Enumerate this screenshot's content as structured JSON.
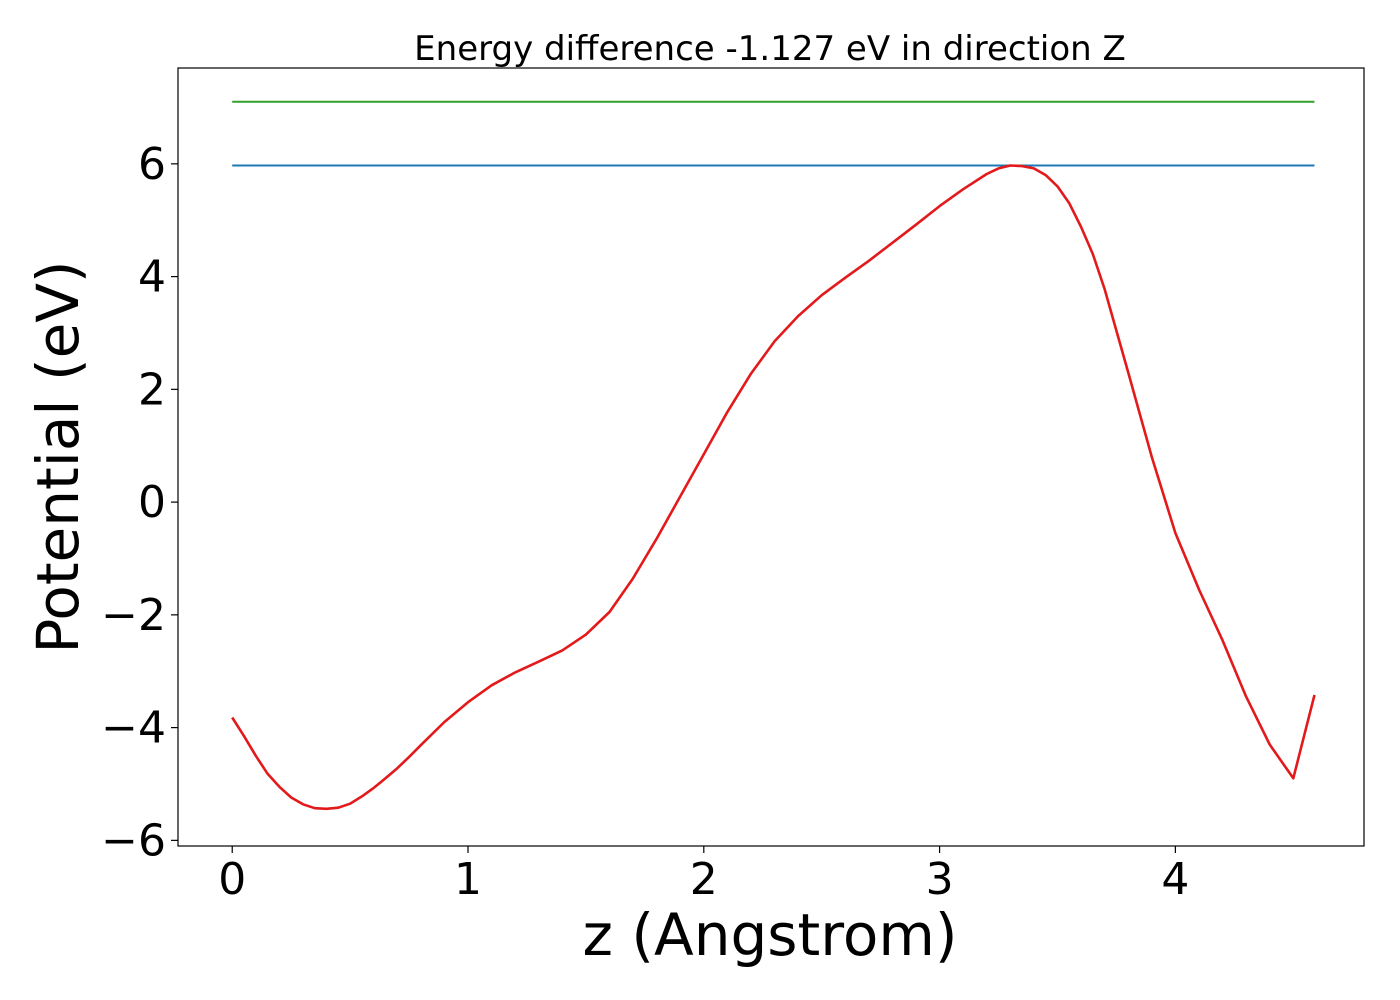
{
  "chart_data": {
    "type": "line",
    "title": "Energy difference -1.127 eV in direction Z",
    "xlabel": "z (Angstrom)",
    "ylabel": "Potential (eV)",
    "xlim": [
      -0.23,
      4.8
    ],
    "ylim": [
      -6.1,
      7.7
    ],
    "xticks": [
      0,
      1,
      2,
      3,
      4
    ],
    "yticks": [
      -6,
      -4,
      -2,
      0,
      2,
      4,
      6
    ],
    "xtick_labels": [
      "0",
      "1",
      "2",
      "3",
      "4"
    ],
    "ytick_labels": [
      "−6",
      "−4",
      "−2",
      "0",
      "2",
      "4",
      "6"
    ],
    "grid": false,
    "legend": "none",
    "series": [
      {
        "color": "#1f78b4",
        "style": "hline",
        "x": [
          0,
          4.59
        ],
        "y": [
          5.97,
          5.97
        ]
      },
      {
        "color": "#33a02c",
        "style": "hline",
        "x": [
          0,
          4.59
        ],
        "y": [
          7.1,
          7.1
        ]
      },
      {
        "color": "#e31a1c",
        "style": "line",
        "x": [
          0,
          0.05,
          0.1,
          0.15,
          0.2,
          0.25,
          0.3,
          0.35,
          0.4,
          0.45,
          0.5,
          0.55,
          0.6,
          0.65,
          0.7,
          0.75,
          0.8,
          0.9,
          1.0,
          1.1,
          1.2,
          1.3,
          1.4,
          1.5,
          1.6,
          1.7,
          1.8,
          1.9,
          2.0,
          2.1,
          2.2,
          2.3,
          2.4,
          2.5,
          2.6,
          2.7,
          2.8,
          2.9,
          3.0,
          3.1,
          3.2,
          3.25,
          3.3,
          3.35,
          3.4,
          3.45,
          3.5,
          3.55,
          3.6,
          3.65,
          3.7,
          3.8,
          3.9,
          4.0,
          4.1,
          4.2,
          4.3,
          4.4,
          4.5,
          4.59
        ],
        "y": [
          -3.82,
          -4.15,
          -4.5,
          -4.82,
          -5.05,
          -5.24,
          -5.36,
          -5.43,
          -5.44,
          -5.42,
          -5.35,
          -5.22,
          -5.07,
          -4.9,
          -4.72,
          -4.52,
          -4.31,
          -3.9,
          -3.55,
          -3.25,
          -3.02,
          -2.83,
          -2.63,
          -2.35,
          -1.95,
          -1.35,
          -0.65,
          0.1,
          0.85,
          1.6,
          2.28,
          2.85,
          3.3,
          3.67,
          3.98,
          4.28,
          4.6,
          4.92,
          5.25,
          5.55,
          5.82,
          5.92,
          5.97,
          5.96,
          5.92,
          5.8,
          5.6,
          5.3,
          4.88,
          4.4,
          3.78,
          2.3,
          0.8,
          -0.55,
          -1.55,
          -2.45,
          -3.45,
          -4.3,
          -4.9,
          -3.42
        ]
      }
    ]
  }
}
